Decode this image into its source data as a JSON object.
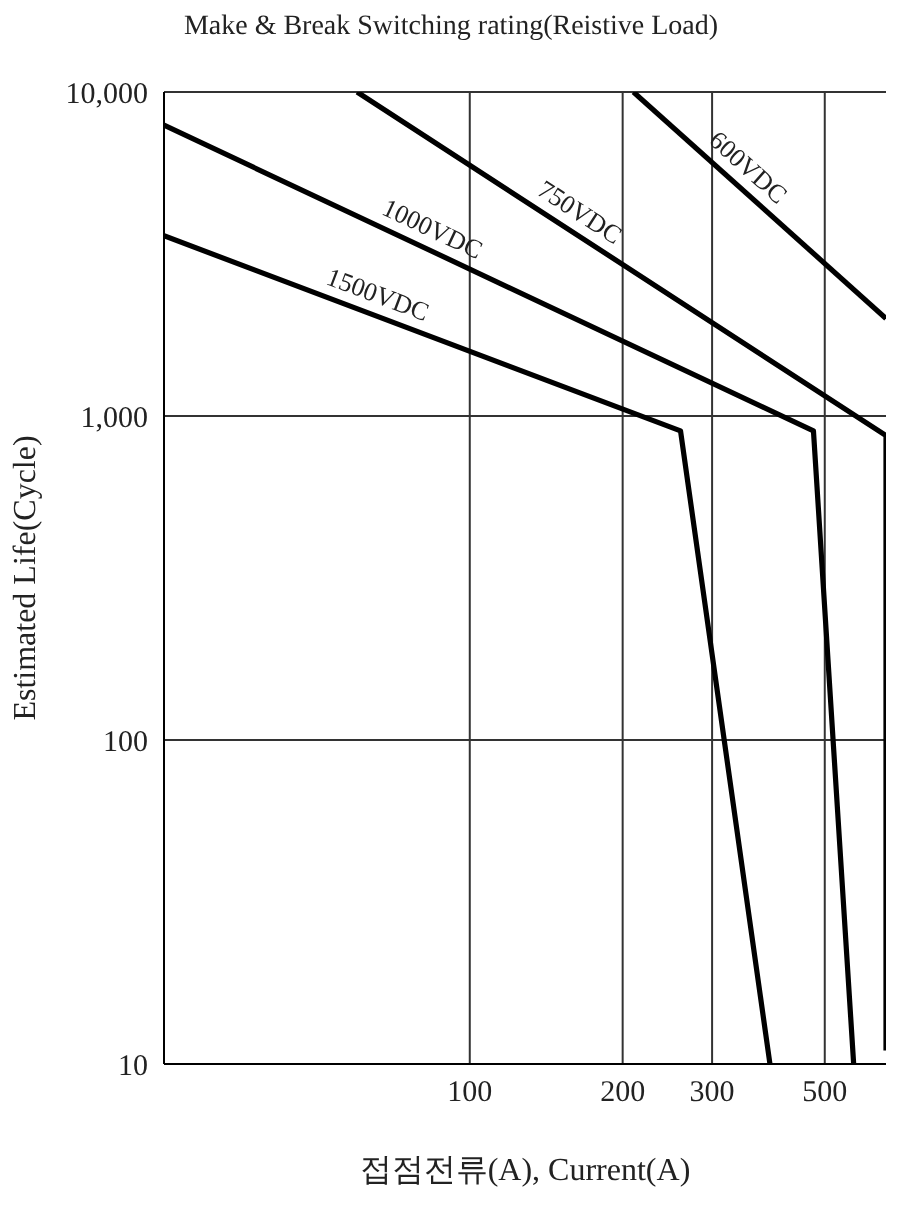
{
  "chart_data": {
    "type": "line",
    "title": "Make & Break Switching rating(Reistive Load)",
    "xlabel": "접점전류(A), Current(A)",
    "ylabel": "Estimated Life(Cycle)",
    "log": "xy",
    "grid": true,
    "marker": "none",
    "xlim": [
      25,
      660
    ],
    "xticks": [
      100,
      200,
      300,
      500
    ],
    "ylim": [
      10,
      10000
    ],
    "yticks": [
      {
        "value": 10,
        "label": "10"
      },
      {
        "value": 100,
        "label": "100"
      },
      {
        "value": 1000,
        "label": "1,000"
      },
      {
        "value": 10000,
        "label": "10,000"
      }
    ],
    "series": [
      {
        "name": "600VDC",
        "color": "#000000",
        "x": [
          210,
          660
        ],
        "values": [
          10000,
          2000
        ]
      },
      {
        "name": "750VDC",
        "color": "#000000",
        "x": [
          60,
          660,
          660
        ],
        "values": [
          10000,
          870,
          11
        ]
      },
      {
        "name": "1000VDC",
        "color": "#000000",
        "x": [
          25,
          475,
          570
        ],
        "values": [
          7900,
          900,
          10
        ]
      },
      {
        "name": "1500VDC",
        "color": "#000000",
        "x": [
          25,
          260,
          390
        ],
        "values": [
          3600,
          900,
          10
        ]
      }
    ]
  }
}
